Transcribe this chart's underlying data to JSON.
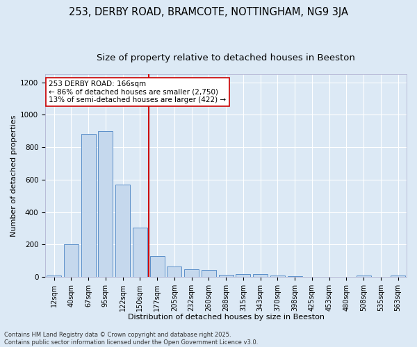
{
  "title": "253, DERBY ROAD, BRAMCOTE, NOTTINGHAM, NG9 3JA",
  "subtitle": "Size of property relative to detached houses in Beeston",
  "xlabel": "Distribution of detached houses by size in Beeston",
  "ylabel": "Number of detached properties",
  "categories": [
    "12sqm",
    "40sqm",
    "67sqm",
    "95sqm",
    "122sqm",
    "150sqm",
    "177sqm",
    "205sqm",
    "232sqm",
    "260sqm",
    "288sqm",
    "315sqm",
    "343sqm",
    "370sqm",
    "398sqm",
    "425sqm",
    "453sqm",
    "480sqm",
    "508sqm",
    "535sqm",
    "563sqm"
  ],
  "values": [
    10,
    200,
    880,
    900,
    570,
    305,
    130,
    65,
    50,
    42,
    15,
    20,
    17,
    10,
    5,
    2,
    2,
    1,
    8,
    1,
    10
  ],
  "bar_color": "#c5d8ed",
  "bar_edge_color": "#5b8fc9",
  "bg_color": "#dce9f5",
  "grid_color": "#ffffff",
  "vline_x": 5.5,
  "vline_color": "#cc0000",
  "annotation_text": "253 DERBY ROAD: 166sqm\n← 86% of detached houses are smaller (2,750)\n13% of semi-detached houses are larger (422) →",
  "annotation_box_color": "#ffffff",
  "annotation_box_edge": "#cc0000",
  "footer_text": "Contains HM Land Registry data © Crown copyright and database right 2025.\nContains public sector information licensed under the Open Government Licence v3.0.",
  "ylim": [
    0,
    1250
  ],
  "title_fontsize": 10.5,
  "subtitle_fontsize": 9.5,
  "tick_fontsize": 7,
  "label_fontsize": 8,
  "annotation_fontsize": 7.5,
  "footer_fontsize": 6
}
